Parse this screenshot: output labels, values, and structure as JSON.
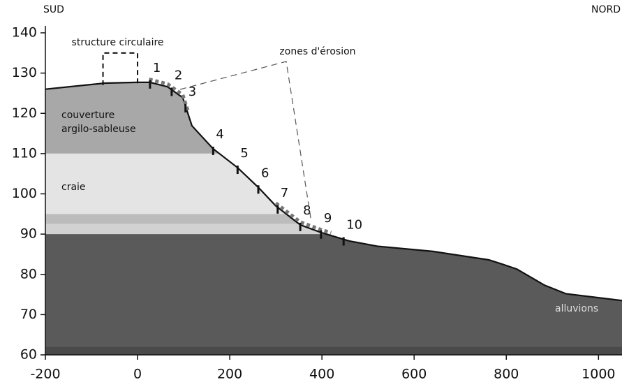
{
  "chart_data": {
    "type": "area",
    "left_label": "SUD",
    "right_label": "NORD",
    "xlim": [
      -200,
      1051
    ],
    "ylim": [
      60,
      140
    ],
    "xticks": [
      -200,
      0,
      200,
      400,
      600,
      800,
      1000
    ],
    "yticks": [
      60,
      70,
      80,
      90,
      100,
      110,
      120,
      130,
      140
    ],
    "profile": {
      "color": "#111111",
      "x": [
        -200,
        -71,
        0,
        27,
        65,
        98,
        118,
        164,
        217,
        262,
        300,
        353,
        398,
        459,
        520,
        641,
        762,
        792,
        823,
        883,
        929,
        1051
      ],
      "y": [
        126,
        127.5,
        127.7,
        127.7,
        126.6,
        123.9,
        116.9,
        111.2,
        106.5,
        101.6,
        97,
        92.3,
        90.4,
        88.3,
        87,
        85.7,
        83.6,
        82.5,
        81.3,
        77.3,
        75.2,
        73.5
      ]
    },
    "layers": [
      {
        "top": 128,
        "bottom": 110,
        "color": "#a8a8a8",
        "label": [
          "couverture",
          "argilo-sableuse"
        ]
      },
      {
        "top": 110,
        "bottom": 95,
        "color": "#e4e4e4",
        "label": [
          "craie"
        ]
      },
      {
        "top": 95,
        "bottom": 92.5,
        "color": "#bcbcbc"
      },
      {
        "top": 92.5,
        "bottom": 90,
        "color": "#d2d2d2"
      },
      {
        "top": 90,
        "bottom": 62,
        "color": "#5a5a5a",
        "label": [
          "alluvions"
        ]
      },
      {
        "top": 62,
        "bottom": 60,
        "color": "#4a4a4a"
      }
    ],
    "structure": {
      "label": "structure circulaire",
      "x": [
        -75,
        0
      ],
      "y": [
        127,
        135
      ]
    },
    "erosion_label": "zones d'érosion",
    "erosion_zones": [
      [
        25,
        110
      ],
      [
        300,
        420
      ]
    ],
    "markers": [
      {
        "label": "1",
        "x": 27
      },
      {
        "label": "2",
        "x": 74
      },
      {
        "label": "3",
        "x": 104
      },
      {
        "label": "4",
        "x": 164
      },
      {
        "label": "5",
        "x": 217
      },
      {
        "label": "6",
        "x": 262
      },
      {
        "label": "7",
        "x": 304
      },
      {
        "label": "8",
        "x": 353
      },
      {
        "label": "9",
        "x": 398
      },
      {
        "label": "10",
        "x": 447
      }
    ]
  }
}
